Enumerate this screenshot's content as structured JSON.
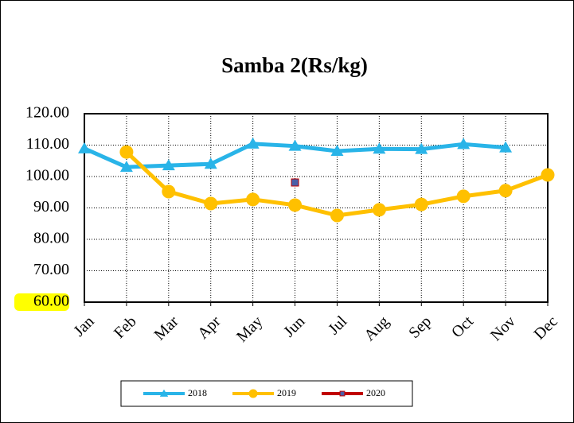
{
  "chart_data": {
    "type": "line",
    "title": "Samba 2(Rs/kg)",
    "categories": [
      "Jan",
      "Feb",
      "Mar",
      "Apr",
      "May",
      "Jun",
      "Jul",
      "Aug",
      "Sep",
      "Oct",
      "Nov",
      "Dec"
    ],
    "series": [
      {
        "name": "2018",
        "color": "#29b4e8",
        "marker": "triangle",
        "values": [
          108.9,
          103,
          103.5,
          104,
          110.4,
          109.7,
          108.1,
          108.8,
          108.7,
          110.3,
          109.2,
          null
        ]
      },
      {
        "name": "2019",
        "color": "#ffc000",
        "marker": "circle",
        "values": [
          null,
          107.8,
          95.2,
          91.4,
          92.7,
          90.9,
          87.6,
          89.4,
          91.1,
          93.7,
          95.5,
          100.5
        ]
      },
      {
        "name": "2020",
        "color": "#c00000",
        "marker": "square",
        "marker_color": "#4a5fa8",
        "values": [
          null,
          null,
          null,
          null,
          null,
          98.1,
          null,
          null,
          null,
          null,
          null,
          null
        ]
      }
    ],
    "ylim": [
      60,
      120
    ],
    "yticks": [
      {
        "value": 60,
        "label": "60.00"
      },
      {
        "value": 70,
        "label": "70.00"
      },
      {
        "value": 80,
        "label": "80.00"
      },
      {
        "value": 90,
        "label": "90.00"
      },
      {
        "value": 100,
        "label": "100.00"
      },
      {
        "value": 110,
        "label": "110.00"
      },
      {
        "value": 120,
        "label": "120.00"
      }
    ],
    "grid": true,
    "legend": "bottom"
  }
}
